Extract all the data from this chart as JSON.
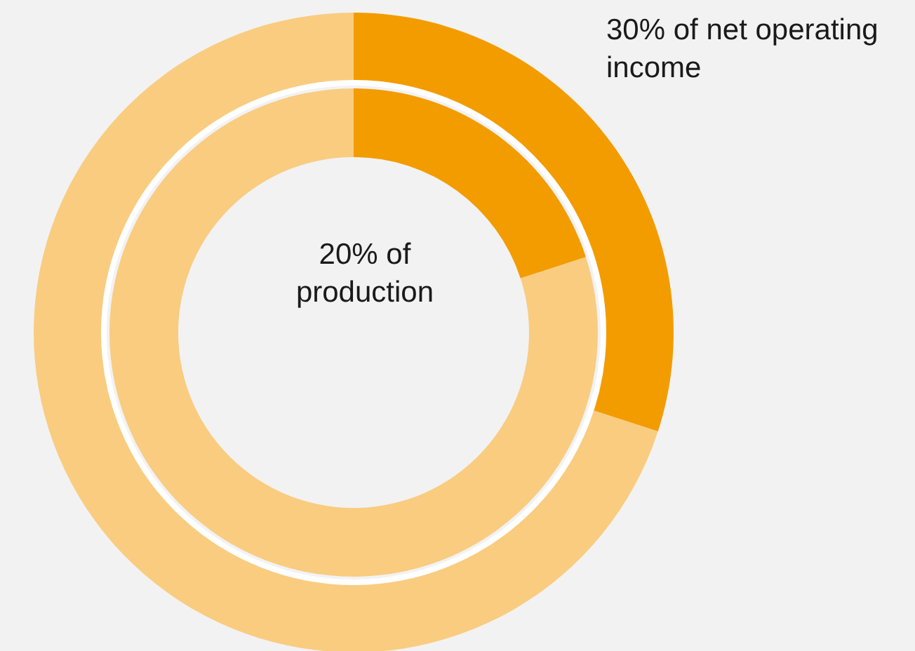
{
  "chart_data": [
    {
      "type": "donut",
      "categories": [
        null,
        null
      ],
      "values": [
        30,
        70
      ],
      "colors": [
        "#f39c00",
        "#f9cc80"
      ],
      "annotations": [
        "30% of net operating income"
      ]
    },
    {
      "type": "donut",
      "categories": [
        null,
        null
      ],
      "values": [
        20,
        80
      ],
      "colors": [
        "#f39c00",
        "#f9cc80"
      ],
      "annotations": [
        "20% of production"
      ]
    }
  ]
}
